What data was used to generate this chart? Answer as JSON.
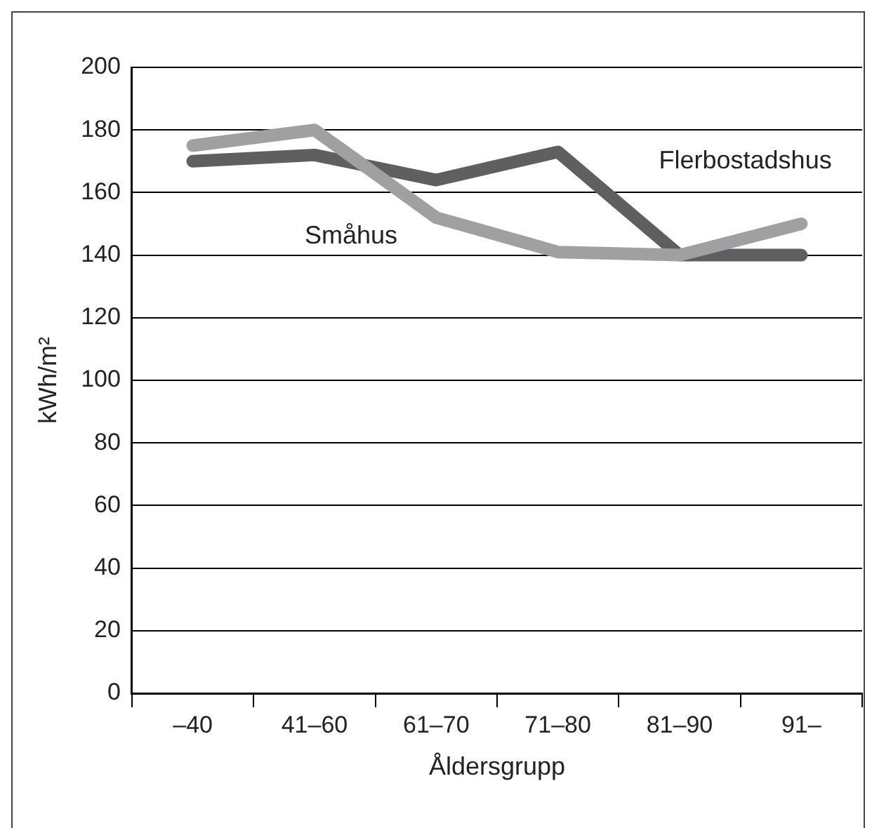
{
  "chart_data": {
    "type": "line",
    "xlabel": "Åldersgrupp",
    "ylabel": "kWh/m²",
    "categories": [
      "–40",
      "41–60",
      "61–70",
      "71–80",
      "81–90",
      "91–"
    ],
    "series": [
      {
        "name": "Småhus",
        "color": "#a0a0a3",
        "values": [
          175,
          180,
          152,
          141,
          140,
          150
        ]
      },
      {
        "name": "Flerbostadshus",
        "color": "#5f5f62",
        "values": [
          170,
          172,
          164,
          173,
          140,
          140
        ]
      }
    ],
    "ylim": [
      0,
      200
    ],
    "yticks": [
      0,
      20,
      40,
      60,
      80,
      100,
      120,
      140,
      160,
      180,
      200
    ],
    "grid": "y",
    "legend": false,
    "marker": "none",
    "line_style": "solid"
  }
}
